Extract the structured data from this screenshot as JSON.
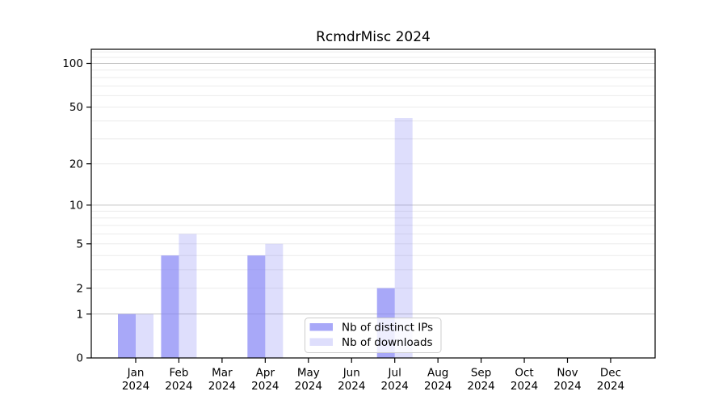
{
  "chart_data": {
    "type": "bar",
    "title": "RcmdrMisc 2024",
    "categories": [
      "Jan",
      "Feb",
      "Mar",
      "Apr",
      "May",
      "Jun",
      "Jul",
      "Aug",
      "Sep",
      "Oct",
      "Nov",
      "Dec"
    ],
    "x_tick_year_line": "2024",
    "series": [
      {
        "name": "Nb of distinct IPs",
        "values": [
          1,
          4,
          0,
          4,
          0,
          0,
          2,
          0,
          0,
          0,
          0,
          0
        ],
        "color": "#7f7ff5",
        "fill_alpha": 0.68
      },
      {
        "name": "Nb of downloads",
        "values": [
          1,
          6,
          0,
          5,
          0,
          0,
          42,
          0,
          0,
          0,
          0,
          0
        ],
        "color": "#7f7ff5",
        "fill_alpha": 0.26
      }
    ],
    "xlabel": "",
    "ylabel": "",
    "yscale": "log1p",
    "ylim": [
      0,
      125
    ],
    "ytick_labels": [
      0,
      1,
      2,
      5,
      10,
      20,
      50,
      100
    ],
    "major_gridlines": [
      1,
      10,
      100
    ],
    "minor_gridlines": [
      2,
      3,
      4,
      5,
      6,
      7,
      8,
      9,
      20,
      30,
      40,
      50,
      60,
      70,
      80,
      90,
      110,
      120
    ],
    "grid": true,
    "legend_position": "bottom-center-left"
  },
  "colors": {
    "background": "#ffffff",
    "spine": "#000000",
    "text": "#000000",
    "major_grid": "#c3c3c3",
    "minor_grid": "#ebebeb",
    "legend_border": "#cccccc",
    "legend_bg": "#ffffff",
    "legend_bg_alpha": 0.8
  }
}
